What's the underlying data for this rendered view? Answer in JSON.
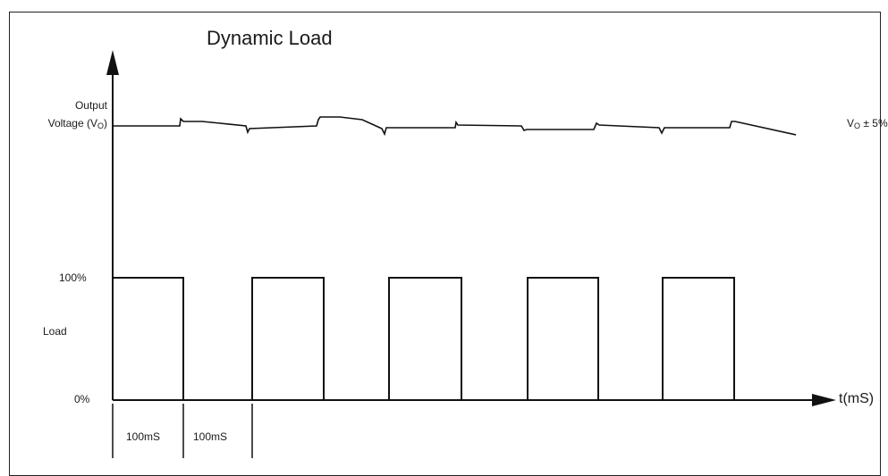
{
  "title": "Dynamic Load",
  "y_axis": {
    "output_label_line1": "Output",
    "output_label_line2_prefix": "Voltage (V",
    "output_label_sub": "O",
    "output_label_suffix": ")",
    "load_label": "Load",
    "tick_100": "100%",
    "tick_0": "0%"
  },
  "x_axis": {
    "label": "t(mS)"
  },
  "tolerance": {
    "prefix": "V",
    "sub": "O",
    "suffix": " ± 5%"
  },
  "intervals": [
    {
      "label": "100mS"
    },
    {
      "label": "100mS"
    }
  ],
  "load_waveform": {
    "pulses": 5,
    "high": "100%",
    "low": "0%"
  }
}
